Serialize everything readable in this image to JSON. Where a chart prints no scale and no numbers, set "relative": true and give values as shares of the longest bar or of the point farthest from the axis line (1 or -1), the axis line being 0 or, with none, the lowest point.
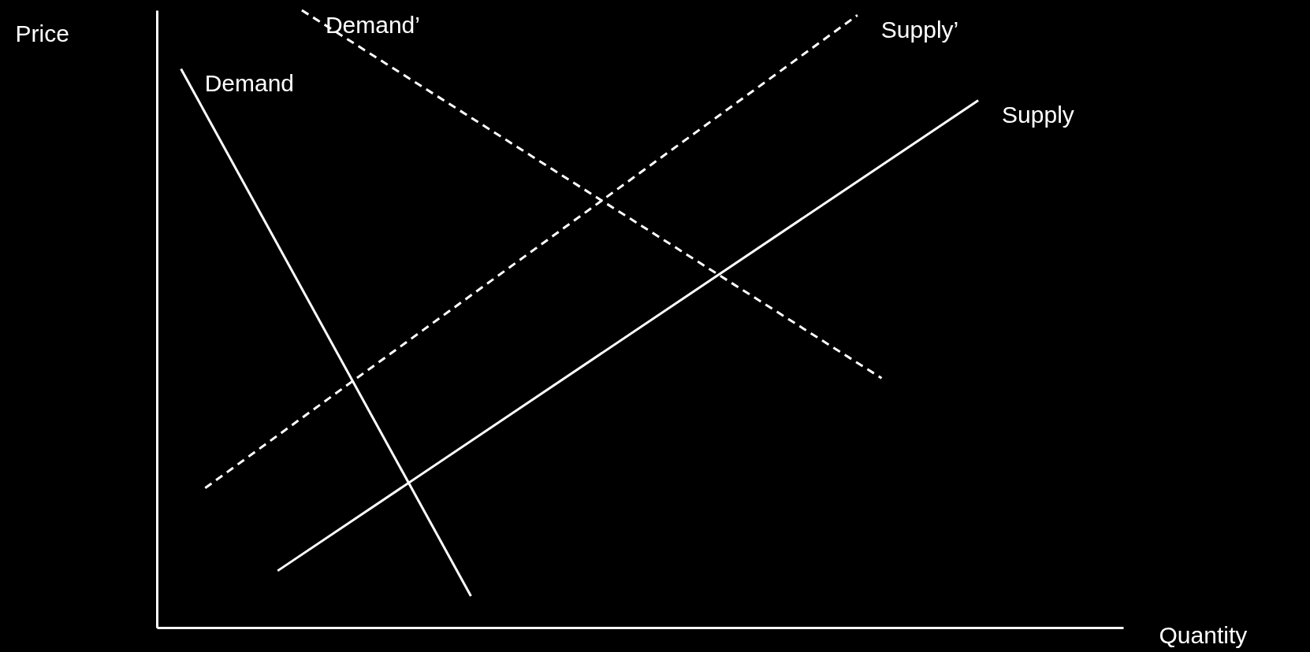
{
  "chart_data": {
    "type": "line",
    "relative": true,
    "xlabel": "Quantity",
    "ylabel": "Price",
    "grid": false,
    "legend": false,
    "marker": "none",
    "categories": [
      null,
      null,
      null,
      null,
      null,
      null,
      null,
      null,
      null,
      null,
      null,
      null,
      null,
      null,
      null,
      null,
      null,
      null,
      null,
      null,
      null,
      null,
      null,
      null,
      null,
      null,
      null,
      null,
      null,
      null,
      null,
      null,
      null,
      null,
      null,
      null,
      null,
      null,
      null,
      null,
      null
    ],
    "series": [
      {
        "name": "Demand",
        "color": "#ffffff",
        "line_style": "solid",
        "values": [
          null,
          0.905,
          null,
          null,
          null,
          null,
          null,
          null,
          null,
          null,
          null,
          null,
          null,
          0.051,
          null,
          null,
          null,
          null,
          null,
          null,
          null,
          null,
          null,
          null,
          null,
          null,
          null,
          null,
          null,
          null,
          null,
          null,
          null,
          null,
          null,
          null,
          null,
          null,
          null,
          null,
          null
        ]
      },
      {
        "name": "Demand’",
        "color": "#ffffff",
        "line_style": "dashed",
        "values": [
          null,
          null,
          null,
          null,
          null,
          null,
          1.0,
          null,
          null,
          null,
          null,
          null,
          null,
          null,
          null,
          null,
          null,
          null,
          null,
          null,
          null,
          null,
          null,
          null,
          null,
          null,
          null,
          null,
          null,
          null,
          0.404,
          null,
          null,
          null,
          null,
          null,
          null,
          null,
          null,
          null,
          null
        ]
      },
      {
        "name": "Supply’",
        "color": "#ffffff",
        "line_style": "dashed",
        "values": [
          null,
          null,
          0.226,
          null,
          null,
          null,
          null,
          null,
          null,
          null,
          null,
          null,
          null,
          null,
          null,
          null,
          null,
          null,
          null,
          null,
          null,
          null,
          null,
          null,
          null,
          null,
          null,
          null,
          null,
          0.992,
          null,
          null,
          null,
          null,
          null,
          null,
          null,
          null,
          null,
          null,
          null
        ]
      },
      {
        "name": "Supply",
        "color": "#ffffff",
        "line_style": "solid",
        "values": [
          null,
          null,
          null,
          null,
          null,
          0.092,
          null,
          null,
          null,
          null,
          null,
          null,
          null,
          null,
          null,
          null,
          null,
          null,
          null,
          null,
          null,
          null,
          null,
          null,
          null,
          null,
          null,
          null,
          null,
          null,
          null,
          null,
          null,
          null,
          0.854,
          null,
          null,
          null,
          null,
          null,
          null
        ]
      }
    ]
  }
}
